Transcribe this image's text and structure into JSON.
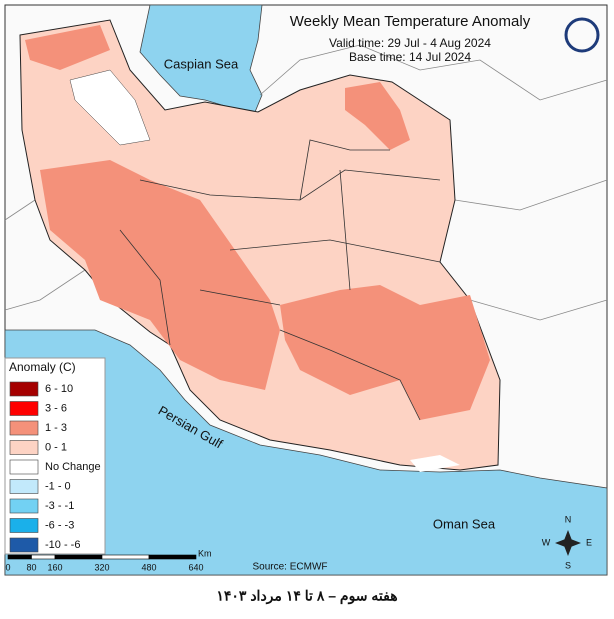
{
  "header": {
    "title": "Weekly Mean Temperature Anomaly",
    "valid_time": "Valid time: 29 Jul - 4 Aug 2024",
    "base_time": "Base time: 14 Jul 2024"
  },
  "map": {
    "labels": [
      "Caspian Sea",
      "Persian Gulf",
      "Oman Sea"
    ]
  },
  "legend": {
    "title": "Anomaly (C)",
    "entries": [
      {
        "label": "6 - 10",
        "color": "#a50000"
      },
      {
        "label": "3 - 6",
        "color": "#ff0000"
      },
      {
        "label": "1 - 3",
        "color": "#f4917a"
      },
      {
        "label": "0 - 1",
        "color": "#fdd3c4"
      },
      {
        "label": "No Change",
        "color": "#ffffff"
      },
      {
        "label": "-1 - 0",
        "color": "#c2e9fb"
      },
      {
        "label": "-3 - -1",
        "color": "#72d1f3"
      },
      {
        "label": "-6 - -3",
        "color": "#1ab0ea"
      },
      {
        "label": "-10 - -6",
        "color": "#1e5aa8"
      }
    ]
  },
  "scale_bar": {
    "ticks": [
      0,
      80,
      160,
      320,
      480,
      640
    ],
    "unit": "Km"
  },
  "source": "Source: ECMWF",
  "compass": {
    "N": "N",
    "S": "S",
    "E": "E",
    "W": "W"
  },
  "caption": "هفته سوم – ۸ تا ۱۴ مرداد ۱۴۰۳"
}
